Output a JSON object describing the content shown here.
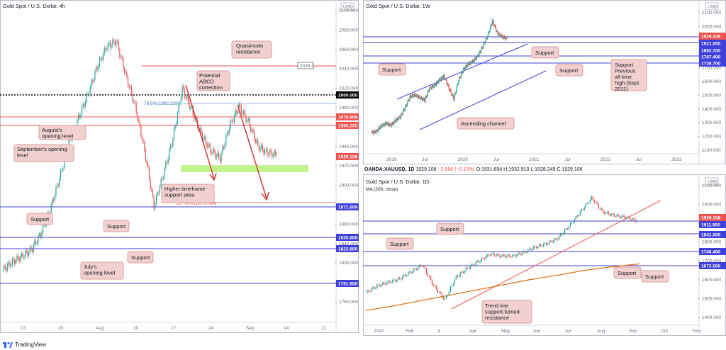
{
  "colors": {
    "support_line": "#3f3fdc",
    "red_line": "#ef5350",
    "zone": "#b7f27a",
    "callout": "#f2d0d0",
    "callout_border": "#d9a0a0",
    "up": "#26a69a",
    "down": "#ef5350",
    "ma": "#e0761a",
    "badge_price": "#ef5350",
    "badge_support": "#3f3fdc",
    "badge_black": "#000000"
  },
  "brand": {
    "name": "TradingView",
    "icon": "tradingview-logo-icon"
  },
  "left": {
    "title": "Gold Spot / U.S. Dollar, 4h",
    "currency": "USD",
    "y_ticks": [
      "2100.000",
      "2080.000",
      "2060.000",
      "2040.000",
      "2020.000",
      "1980.000",
      "1960.000",
      "1940.000",
      "1920.000",
      "1900.000",
      "1880.000",
      "1860.000",
      "1840.000",
      "1800.000",
      "1780.000",
      "1760.000"
    ],
    "x_ticks": [
      "13",
      "20",
      "Aug",
      "10",
      "17",
      "24",
      "Sep",
      "14",
      "21"
    ],
    "badges": {
      "quasimodo": "2036.3",
      "round": "2000.000",
      "red1": "1975.900",
      "red2": "1966.160",
      "price": "1929.108",
      "sup1": "1871.609",
      "sup2": "1835.800",
      "sup3": "1822.800",
      "sup4": "1781.800"
    },
    "fib": "78.6%(1992.329)",
    "fib_ext": "127.00%(1876.068)",
    "notes": {
      "quasimodo": "Quasimodo resistance",
      "abcd": "Potential ABCD correction",
      "august": "August's opening level",
      "september": "September's opening level",
      "htf": "Higher timeframe support area",
      "support_a": "Support",
      "support_b": "Support",
      "support_c": "Support",
      "july": "July's opening level"
    }
  },
  "weekly": {
    "title": "Gold Spot / U.S. Dollar, 1W",
    "currency": "USD",
    "y_ticks": [
      "2100.000",
      "2000.000",
      "1900.000",
      "1800.000",
      "1700.000",
      "1600.000",
      "1500.000",
      "1400.000",
      "1300.000",
      "1200.000",
      "1100.000"
    ],
    "x_ticks": [
      "2019",
      "Jul",
      "2020",
      "Jul",
      "2021",
      "Jul",
      "2022",
      "Jul",
      "2023"
    ],
    "badges": {
      "price": "1929.108",
      "b1": "1921.000",
      "b2": "1882.700",
      "b3": "1787.400",
      "b4": "1738.700"
    },
    "notes": {
      "support1": "Support",
      "support2": "Support",
      "support3": "Support",
      "prev_high": "Support Previous all-time high (Sept 2011)",
      "channel": "Ascending channel"
    }
  },
  "ohlc": {
    "symbol": "OANDA:XAUUSD, 1D",
    "last": "1929.108",
    "change": "−2.586 (−0.13%)",
    "o": "O:1931.694",
    "h": "H:1932.910",
    "l": "L:1928.245",
    "c": "C:1929.108"
  },
  "daily": {
    "title": "Gold Spot / U.S. Dollar, 1D",
    "ma_label": "MA (200, close)",
    "currency": "USD",
    "y_ticks": [
      "2100.000",
      "2000.000",
      "1900.000",
      "1800.000",
      "1700.000",
      "1600.000",
      "1500.000",
      "1400.000"
    ],
    "x_ticks": [
      "2020",
      "Feb",
      "3",
      "Apr",
      "May",
      "Jun",
      "Jul",
      "Aug",
      "Sep",
      "Oct",
      "Nov"
    ],
    "badges": {
      "price": "1929.108",
      "b1": "1911.900",
      "b2": "1841.000",
      "b3": "1746.400",
      "b4": "1672.500"
    },
    "notes": {
      "support1": "Support",
      "support2": "Support",
      "support3": "Support",
      "support4": "Support",
      "trendline": "Trend line support-turned resistance"
    }
  },
  "chart_data": [
    {
      "type": "line",
      "panel": "4h",
      "title": "Gold Spot / U.S. Dollar, 4h",
      "ylim": [
        1745,
        2110
      ],
      "series": [
        {
          "values": [
            1785,
            1795,
            1802,
            1810,
            1830,
            1860,
            1900,
            1945,
            1975,
            2005,
            2040,
            2065,
            2072,
            2030,
            1990,
            1935,
            1865,
            1905,
            1950,
            2012,
            1985,
            1955,
            1935,
            1925,
            1965,
            1990,
            1970,
            1940,
            1932,
            1929
          ]
        }
      ],
      "levels": [
        2036.3,
        2000,
        1975.9,
        1966.16,
        1929.108,
        1871.609,
        1835.8,
        1822.8,
        1781.8
      ],
      "zone": [
        1913,
        1922
      ]
    },
    {
      "type": "line",
      "panel": "1W",
      "title": "Gold Spot / U.S. Dollar, 1W",
      "ylim": [
        1100,
        2120
      ],
      "series": [
        {
          "values": [
            1230,
            1240,
            1280,
            1300,
            1285,
            1320,
            1350,
            1420,
            1500,
            1510,
            1490,
            1470,
            1560,
            1580,
            1620,
            1650,
            1560,
            1480,
            1620,
            1700,
            1740,
            1760,
            1800,
            1870,
            1950,
            2060,
            1970,
            1940,
            1929
          ]
        }
      ],
      "levels": [
        1929.108,
        1921,
        1882.7,
        1787.4,
        1738.7
      ]
    },
    {
      "type": "line",
      "panel": "1D",
      "title": "Gold Spot / U.S. Dollar, 1D",
      "ylim": [
        1380,
        2130
      ],
      "series": [
        {
          "name": "MA (200, close)",
          "values": [
            1420,
            1445,
            1475,
            1505,
            1535,
            1565,
            1595,
            1620,
            1648,
            1668,
            1685
          ]
        },
        {
          "values": [
            1520,
            1560,
            1580,
            1600,
            1640,
            1680,
            1560,
            1480,
            1610,
            1660,
            1700,
            1740,
            1730,
            1730,
            1750,
            1780,
            1800,
            1830,
            1900,
            1980,
            2060,
            1980,
            1960,
            1950,
            1929
          ]
        }
      ],
      "levels": [
        1929.108,
        1911.9,
        1841,
        1746.4,
        1672.5
      ]
    }
  ]
}
